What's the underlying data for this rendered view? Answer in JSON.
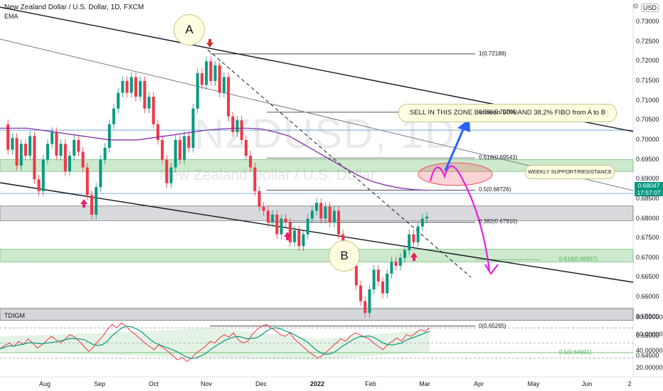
{
  "header": {
    "title": "New Zealand Dollar / U.S. Dollar, 1D, FXCM",
    "indicator": "EMA",
    "currency": "USD",
    "lower_indicator": "TDIGM",
    "watermark_symbol": "NZDUSD, 1D",
    "watermark_name": "New Zealand Dollar / U.S. Dollar"
  },
  "chart_data": {
    "type": "line",
    "x_ticks": [
      "Aug",
      "Sep",
      "Oct",
      "Nov",
      "Dec",
      "2022",
      "Feb",
      "Mar",
      "Apr",
      "May",
      "Jun",
      "2"
    ],
    "y_ticks": [
      "0.73000",
      "0.72500",
      "0.72000",
      "0.71500",
      "0.71000",
      "0.70500",
      "0.70000",
      "0.69500",
      "0.69000",
      "0.68500",
      "0.68000",
      "0.67500",
      "0.67000",
      "0.66500",
      "0.66000",
      "0.65500",
      "0.65000",
      "0.64500"
    ],
    "ylim": [
      0.6438,
      0.7332
    ],
    "last_price": "0.68047",
    "countdown": "17:57:07",
    "fib_levels": [
      {
        "label": "1(0.72188)",
        "value": 0.72188
      },
      {
        "label": "0.786(0.70706)",
        "value": 0.70706
      },
      {
        "label": "0.618(0.69543)",
        "value": 0.69543
      },
      {
        "label": "0.5(0.68726)",
        "value": 0.68726
      },
      {
        "label": "0.382(0.67910)",
        "value": 0.6791
      },
      {
        "label": "0.618(0.66957)",
        "value": 0.66957
      },
      {
        "label": "0(0.65265)",
        "value": 0.65265
      },
      {
        "label": "0.5(0.64591)",
        "value": 0.64591
      }
    ],
    "series": [
      {
        "values": [
          0.704,
          0.6975,
          0.7005,
          0.6935,
          0.699,
          0.696,
          0.701,
          0.69,
          0.687,
          0.695,
          0.699,
          0.702,
          0.696,
          0.699,
          0.692,
          0.696,
          0.7,
          0.697,
          0.693,
          0.686,
          0.681,
          0.688,
          0.695,
          0.698,
          0.704,
          0.708,
          0.712,
          0.715,
          0.712,
          0.716,
          0.711,
          0.715,
          0.708,
          0.711,
          0.704,
          0.7,
          0.695,
          0.689,
          0.693,
          0.7,
          0.695,
          0.701,
          0.698,
          0.708,
          0.717,
          0.714,
          0.72,
          0.715,
          0.719,
          0.712,
          0.716,
          0.706,
          0.702,
          0.705,
          0.7,
          0.696,
          0.693,
          0.687,
          0.683,
          0.682,
          0.679,
          0.681,
          0.676,
          0.68,
          0.679,
          0.674,
          0.677,
          0.673,
          0.676,
          0.68,
          0.682,
          0.684,
          0.68,
          0.683,
          0.679,
          0.682,
          0.676,
          0.672,
          0.67,
          0.668,
          0.663,
          0.659,
          0.656,
          0.662,
          0.667,
          0.664,
          0.661,
          0.666,
          0.669,
          0.668,
          0.67,
          0.672,
          0.676,
          0.674,
          0.678,
          0.68,
          0.6805
        ]
      },
      {
        "values": [
          0.703,
          0.703,
          0.703,
          0.7025,
          0.702,
          0.7015,
          0.701,
          0.7005,
          0.7,
          0.7,
          0.7,
          0.7005,
          0.701,
          0.7015,
          0.702,
          0.7025,
          0.7028,
          0.703,
          0.703,
          0.7028,
          0.702,
          0.701,
          0.699,
          0.697,
          0.695,
          0.693,
          0.691,
          0.6895,
          0.6885,
          0.6878,
          0.6874,
          0.6872
        ]
      }
    ],
    "annotations": {
      "point_a": "A",
      "point_b": "B",
      "sell_zone": "SELL IN THIS ZONE Between  50% AND 38,2% FIBO  from A to B",
      "support_resistance": "WEEKLY   SUPPORT/RESISTANCE"
    },
    "oscillator": {
      "y_ticks": [
        "80.00000",
        "60.00000",
        "40.00000",
        "20.00000"
      ],
      "ylim": [
        15,
        85
      ],
      "values": [
        43,
        47,
        50,
        46,
        52,
        48,
        55,
        50,
        44,
        48,
        53,
        58,
        54,
        50,
        55,
        60,
        57,
        52,
        46,
        40,
        45,
        52,
        58,
        66,
        72,
        68,
        74,
        70,
        64,
        60,
        55,
        50,
        46,
        42,
        48,
        44,
        40,
        35,
        30,
        33,
        28,
        32,
        38,
        42,
        46,
        52,
        50,
        56,
        60,
        57,
        62,
        54,
        50,
        52,
        60,
        66,
        70,
        72,
        68,
        65,
        60,
        58,
        62,
        55,
        50,
        45,
        40,
        36,
        32,
        35,
        40,
        45,
        50,
        55,
        52,
        58,
        62,
        60,
        57,
        55,
        50,
        46,
        42,
        48,
        52,
        56,
        52,
        60,
        58,
        62,
        66,
        64,
        68
      ]
    }
  }
}
